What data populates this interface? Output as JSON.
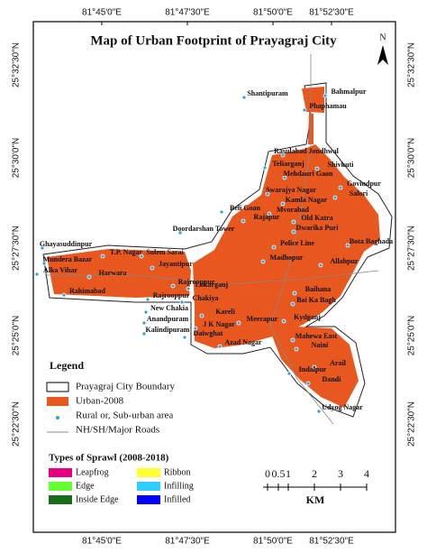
{
  "header": {
    "title": "Map of Urban Footprint of Prayagraj City"
  },
  "coordinates": {
    "longitude": [
      "81°45'0\"E",
      "81°47'30\"E",
      "81°50'0\"E",
      "81°52'30\"E"
    ],
    "latitude": [
      "25°32'30\"N",
      "25°30'0\"N",
      "25°27'30\"N",
      "25°25'0\"N",
      "25°22'30\"N"
    ]
  },
  "north": "N",
  "places": [
    "Shantipuram",
    "Bahmalpur",
    "Phaphamau",
    "Rasulabad Jondhwal",
    "Teliarganj",
    "Shivkuti",
    "Mehdauri Gaon",
    "Govindpur",
    "Salori",
    "Swarajya Nagar",
    "Kamla Nagar",
    "Beli Goan",
    "Mvorabad",
    "Rajapur",
    "Old Katra",
    "Dwarika Puri",
    "Doordarshan Tower",
    "Police Line",
    "Bota Baghada",
    "Madhopur",
    "Allahpur",
    "Ghayasuddinpur",
    "T.P. Nagar",
    "Sulem Sarai",
    "Mundera Bazar",
    "Jayantipur",
    "Alka Vihar",
    "Harwara",
    "Rahimabad",
    "Rajrooppur",
    "Lokarganj",
    "Rajrooppur",
    "Chakiya",
    "Baihana",
    "Bai Ka Bagh",
    "New Chakia",
    "Kareli",
    "Kydganj",
    "Anandpuram",
    "Kalindipuram",
    "J K Nagar",
    "Meerapur",
    "Daiwghat",
    "Azad Nagar",
    "Mahewa East",
    "Naini",
    "Arail",
    "Indalpur",
    "Dandi",
    "Udyog Nagar"
  ],
  "legend": {
    "title": "Legend",
    "items": [
      "Prayagraj City Boundary",
      "Urban-2008",
      "Rural or, Sub-urban area",
      "NH/SH/Major Roads"
    ]
  },
  "sprawl": {
    "title": "Types of Sprawl (2008-2018)",
    "items": [
      "Leapfrog",
      "Edge",
      "Inside Edge",
      "Ribbon",
      "Infilling",
      "Infilled"
    ]
  },
  "scale": {
    "ticks": [
      "0",
      "0.5",
      "1",
      "2",
      "3",
      "4"
    ],
    "unit": "KM"
  }
}
